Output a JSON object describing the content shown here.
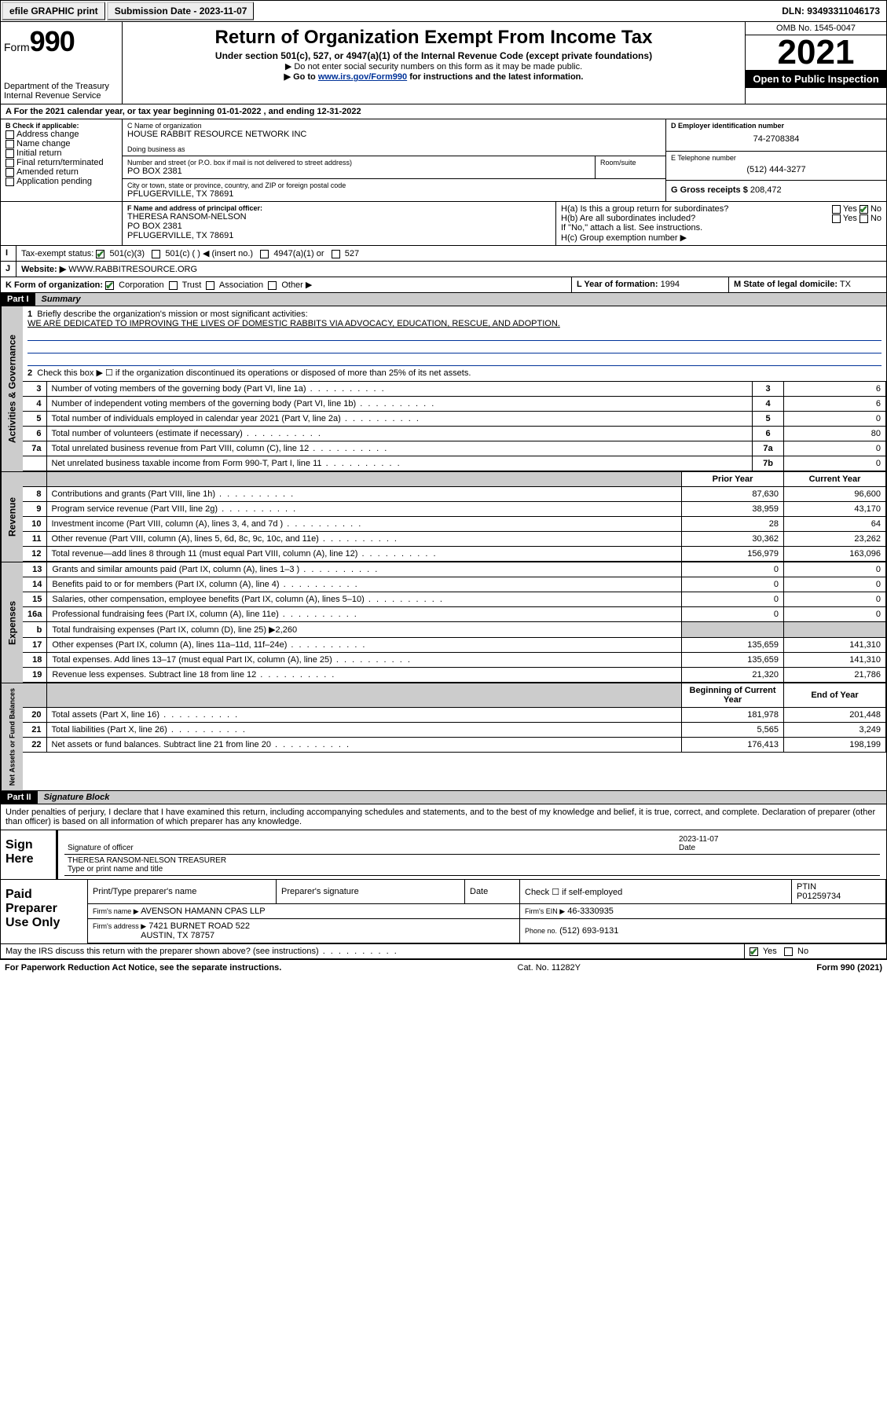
{
  "topbar": {
    "efile": "efile GRAPHIC print",
    "submission_label": "Submission Date - 2023-11-07",
    "dln_label": "DLN: 93493311046173"
  },
  "header": {
    "form_word": "Form",
    "form_num": "990",
    "dept": "Department of the Treasury",
    "irs": "Internal Revenue Service",
    "title": "Return of Organization Exempt From Income Tax",
    "subtitle": "Under section 501(c), 527, or 4947(a)(1) of the Internal Revenue Code (except private foundations)",
    "note1": "▶ Do not enter social security numbers on this form as it may be made public.",
    "note2_pre": "▶ Go to ",
    "note2_link": "www.irs.gov/Form990",
    "note2_post": " for instructions and the latest information.",
    "omb": "OMB No. 1545-0047",
    "year": "2021",
    "open": "Open to Public Inspection"
  },
  "line_a": "For the 2021 calendar year, or tax year beginning 01-01-2022   , and ending 12-31-2022",
  "box_b": {
    "label": "B Check if applicable:",
    "opts": [
      "Address change",
      "Name change",
      "Initial return",
      "Final return/terminated",
      "Amended return",
      "Application pending"
    ]
  },
  "box_c": {
    "label": "C Name of organization",
    "name": "HOUSE RABBIT RESOURCE NETWORK INC",
    "dba_label": "Doing business as",
    "street_label": "Number and street (or P.O. box if mail is not delivered to street address)",
    "room_label": "Room/suite",
    "street": "PO BOX 2381",
    "city_label": "City or town, state or province, country, and ZIP or foreign postal code",
    "city": "PFLUGERVILLE, TX  78691"
  },
  "box_d": {
    "label": "D Employer identification number",
    "val": "74-2708384"
  },
  "box_e": {
    "label": "E Telephone number",
    "val": "(512) 444-3277"
  },
  "box_g": {
    "label": "G Gross receipts $",
    "val": "208,472"
  },
  "box_f": {
    "label": "F Name and address of principal officer:",
    "name": "THERESA RANSOM-NELSON",
    "addr1": "PO BOX 2381",
    "addr2": "PFLUGERVILLE, TX  78691"
  },
  "box_h": {
    "ha": "H(a)  Is this a group return for subordinates?",
    "hb": "H(b)  Are all subordinates included?",
    "hb_note": "If \"No,\" attach a list. See instructions.",
    "hc": "H(c)  Group exemption number ▶",
    "yes": "Yes",
    "no": "No"
  },
  "line_i": {
    "label": "Tax-exempt status:",
    "opts": [
      "501(c)(3)",
      "501(c) (  ) ◀ (insert no.)",
      "4947(a)(1) or",
      "527"
    ]
  },
  "line_j": {
    "label": "Website: ▶",
    "val": "WWW.RABBITRESOURCE.ORG"
  },
  "line_k": {
    "label": "K Form of organization:",
    "opts": [
      "Corporation",
      "Trust",
      "Association",
      "Other ▶"
    ]
  },
  "line_l": {
    "label": "L Year of formation:",
    "val": "1994"
  },
  "line_m": {
    "label": "M State of legal domicile:",
    "val": "TX"
  },
  "part1": {
    "hdr": "Part I",
    "title": "Summary"
  },
  "p1": {
    "l1_label": "Briefly describe the organization's mission or most significant activities:",
    "l1_text": "WE ARE DEDICATED TO IMPROVING THE LIVES OF DOMESTIC RABBITS VIA ADVOCACY, EDUCATION, RESCUE, AND ADOPTION.",
    "l2": "Check this box ▶ ☐  if the organization discontinued its operations or disposed of more than 25% of its net assets.",
    "rows_ag": [
      {
        "n": "3",
        "t": "Number of voting members of the governing body (Part VI, line 1a)",
        "b": "3",
        "v": "6"
      },
      {
        "n": "4",
        "t": "Number of independent voting members of the governing body (Part VI, line 1b)",
        "b": "4",
        "v": "6"
      },
      {
        "n": "5",
        "t": "Total number of individuals employed in calendar year 2021 (Part V, line 2a)",
        "b": "5",
        "v": "0"
      },
      {
        "n": "6",
        "t": "Total number of volunteers (estimate if necessary)",
        "b": "6",
        "v": "80"
      },
      {
        "n": "7a",
        "t": "Total unrelated business revenue from Part VIII, column (C), line 12",
        "b": "7a",
        "v": "0"
      },
      {
        "n": "",
        "t": "Net unrelated business taxable income from Form 990-T, Part I, line 11",
        "b": "7b",
        "v": "0"
      }
    ],
    "col_prior": "Prior Year",
    "col_current": "Current Year",
    "rows_rev": [
      {
        "n": "8",
        "t": "Contributions and grants (Part VIII, line 1h)",
        "p": "87,630",
        "c": "96,600"
      },
      {
        "n": "9",
        "t": "Program service revenue (Part VIII, line 2g)",
        "p": "38,959",
        "c": "43,170"
      },
      {
        "n": "10",
        "t": "Investment income (Part VIII, column (A), lines 3, 4, and 7d )",
        "p": "28",
        "c": "64"
      },
      {
        "n": "11",
        "t": "Other revenue (Part VIII, column (A), lines 5, 6d, 8c, 9c, 10c, and 11e)",
        "p": "30,362",
        "c": "23,262"
      },
      {
        "n": "12",
        "t": "Total revenue—add lines 8 through 11 (must equal Part VIII, column (A), line 12)",
        "p": "156,979",
        "c": "163,096"
      }
    ],
    "rows_exp": [
      {
        "n": "13",
        "t": "Grants and similar amounts paid (Part IX, column (A), lines 1–3 )",
        "p": "0",
        "c": "0"
      },
      {
        "n": "14",
        "t": "Benefits paid to or for members (Part IX, column (A), line 4)",
        "p": "0",
        "c": "0"
      },
      {
        "n": "15",
        "t": "Salaries, other compensation, employee benefits (Part IX, column (A), lines 5–10)",
        "p": "0",
        "c": "0"
      },
      {
        "n": "16a",
        "t": "Professional fundraising fees (Part IX, column (A), line 11e)",
        "p": "0",
        "c": "0"
      },
      {
        "n": "b",
        "t": "Total fundraising expenses (Part IX, column (D), line 25) ▶2,260",
        "p": "",
        "c": "",
        "shade": true
      },
      {
        "n": "17",
        "t": "Other expenses (Part IX, column (A), lines 11a–11d, 11f–24e)",
        "p": "135,659",
        "c": "141,310"
      },
      {
        "n": "18",
        "t": "Total expenses. Add lines 13–17 (must equal Part IX, column (A), line 25)",
        "p": "135,659",
        "c": "141,310"
      },
      {
        "n": "19",
        "t": "Revenue less expenses. Subtract line 18 from line 12",
        "p": "21,320",
        "c": "21,786"
      }
    ],
    "col_begin": "Beginning of Current Year",
    "col_end": "End of Year",
    "rows_na": [
      {
        "n": "20",
        "t": "Total assets (Part X, line 16)",
        "p": "181,978",
        "c": "201,448"
      },
      {
        "n": "21",
        "t": "Total liabilities (Part X, line 26)",
        "p": "5,565",
        "c": "3,249"
      },
      {
        "n": "22",
        "t": "Net assets or fund balances. Subtract line 21 from line 20",
        "p": "176,413",
        "c": "198,199"
      }
    ]
  },
  "vtabs": {
    "ag": "Activities & Governance",
    "rev": "Revenue",
    "exp": "Expenses",
    "na": "Net Assets or Fund Balances"
  },
  "part2": {
    "hdr": "Part II",
    "title": "Signature Block"
  },
  "perjury": "Under penalties of perjury, I declare that I have examined this return, including accompanying schedules and statements, and to the best of my knowledge and belief, it is true, correct, and complete. Declaration of preparer (other than officer) is based on all information of which preparer has any knowledge.",
  "sign": {
    "here": "Sign Here",
    "sig_officer": "Signature of officer",
    "date": "Date",
    "date_val": "2023-11-07",
    "name": "THERESA RANSOM-NELSON  TREASURER",
    "name_label": "Type or print name and title"
  },
  "paid": {
    "label": "Paid Preparer Use Only",
    "h1": "Print/Type preparer's name",
    "h2": "Preparer's signature",
    "h3": "Date",
    "check_label": "Check ☐ if self-employed",
    "ptin_label": "PTIN",
    "ptin": "P01259734",
    "firm_name_l": "Firm's name   ▶",
    "firm_name": "AVENSON HAMANN CPAS LLP",
    "firm_ein_l": "Firm's EIN ▶",
    "firm_ein": "46-3330935",
    "firm_addr_l": "Firm's address ▶",
    "firm_addr1": "7421 BURNET ROAD 522",
    "firm_addr2": "AUSTIN, TX  78757",
    "phone_l": "Phone no.",
    "phone": "(512) 693-9131"
  },
  "may_irs": "May the IRS discuss this return with the preparer shown above? (see instructions)",
  "footer": {
    "left": "For Paperwork Reduction Act Notice, see the separate instructions.",
    "mid": "Cat. No. 11282Y",
    "right": "Form 990 (2021)"
  }
}
